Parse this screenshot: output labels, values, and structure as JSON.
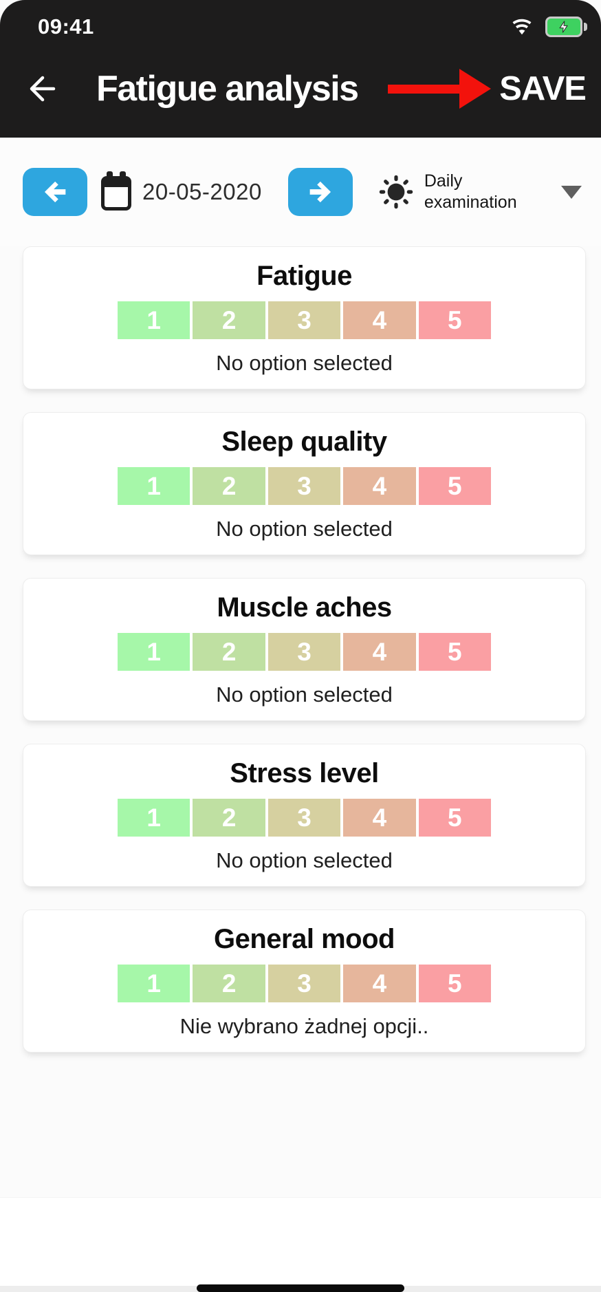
{
  "status_bar": {
    "time": "09:41"
  },
  "header": {
    "title": "Fatigue analysis",
    "save_label": "SAVE"
  },
  "date_bar": {
    "date": "20-05-2020",
    "exam_type": "Daily examination"
  },
  "scale": {
    "labels": [
      "1",
      "2",
      "3",
      "4",
      "5"
    ],
    "colors": [
      "#a6f7a9",
      "#bfe0a2",
      "#d6d0a0",
      "#e6b69c",
      "#fa9fa3"
    ]
  },
  "cards": [
    {
      "title": "Fatigue",
      "status": "No option selected"
    },
    {
      "title": "Sleep quality",
      "status": "No option selected"
    },
    {
      "title": "Muscle aches",
      "status": "No option selected"
    },
    {
      "title": "Stress level",
      "status": "No option selected"
    },
    {
      "title": "General mood",
      "status": "Nie wybrano żadnej opcji.."
    }
  ],
  "colors": {
    "header_bg": "#1d1c1c",
    "accent_blue": "#2ea6df",
    "annotation_red": "#f3120c",
    "battery_green": "#3ed160"
  }
}
